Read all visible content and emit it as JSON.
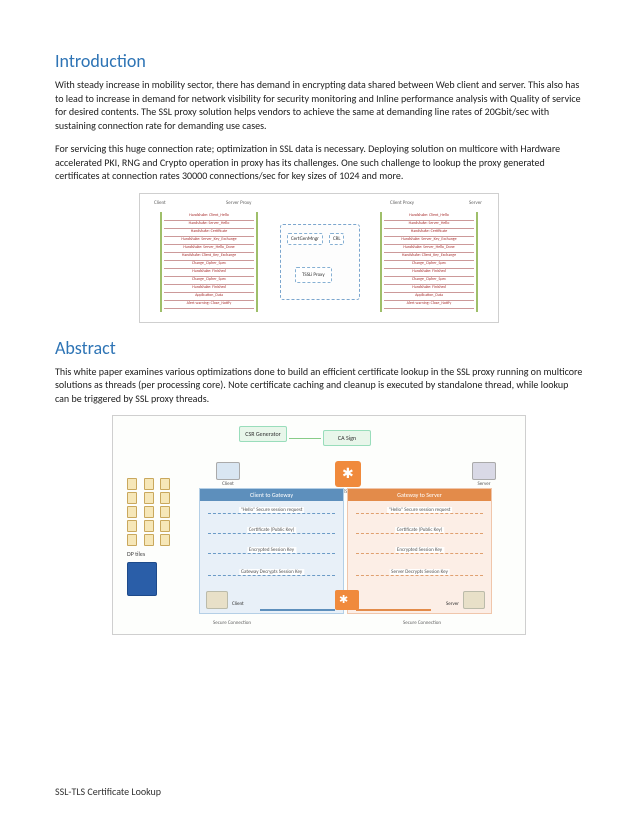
{
  "colors": {
    "heading": "#2E74B5",
    "body_text": "#222222",
    "diagram_border": "#cfcfcf",
    "rail_green": "#9fbf6a",
    "dash_blue": "#7ba6ce",
    "zone_blue_bg": "#e8f0f8",
    "zone_blue_border": "#b4cfe6",
    "zone_blue_header": "#5d8fbc",
    "zone_orange_bg": "#fceee6",
    "zone_orange_border": "#f0c6ab",
    "zone_orange_header": "#e38b4a",
    "tssli_orange": "#f08a3c",
    "top_box_bg": "#e8f6ea",
    "top_box_border": "#99ddbb",
    "dp_tile_bg": "#f6e7b8",
    "dp_tile_border": "#c9a85d",
    "dp_big_tile": "#2a5ea8"
  },
  "introduction": {
    "heading": "Introduction",
    "p1": "With steady increase in mobility sector, there has demand in encrypting data shared between Web client and server. This also has to lead to increase in demand for network visibility for security monitoring and Inline performance analysis with Quality of service for desired contents. The SSL proxy solution helps vendors to achieve the same at demanding line rates of 20Gbit/sec with sustaining connection rate for demanding use cases.",
    "p2": "For servicing this huge connection rate; optimization in SSL data is necessary. Deploying solution on multicore with Hardware accelerated PKI, RNG and Crypto operation in proxy has its challenges. One such challenge to lookup the proxy generated certificates at connection rates 30000 connections/sec for key sizes of 1024 and more."
  },
  "diagram1": {
    "labels": {
      "client": "Client",
      "server_proxy": "Server Proxy",
      "client_proxy": "Client Proxy",
      "server": "Server"
    },
    "center_boxes": {
      "certgen": "CertGenMngr",
      "crl": "CRL",
      "tssli": "TSSLi Proxy"
    },
    "ladder_steps": [
      "Handshake: Client_Hello",
      "Handshake: Server_Hello",
      "Handshake: Certificate",
      "Handshake: Server_Key_Exchange",
      "Handshake: Server_Hello_Done",
      "Handshake: Client_Key_Exchange",
      "Change_Cipher_Spec",
      "Handshake: Finished",
      "Change_Cipher_Spec",
      "Handshake: Finished",
      "Application_Data",
      "Alert warning: Close_Notify"
    ]
  },
  "abstract": {
    "heading": "Abstract",
    "p1": "This white paper examines various optimizations done to build an efficient certificate lookup in the SSL proxy running on multicore solutions as threads (per processing core). Note certificate caching and cleanup is executed by standalone thread, while lookup can be triggered by SSL proxy threads."
  },
  "diagram2": {
    "top_boxes": {
      "csr": "CSR\nGenerator",
      "ca": "CA Sign"
    },
    "nodes": {
      "client": "Client",
      "tssli": "TSSLi",
      "server": "Server"
    },
    "zones": {
      "left_title": "Client to Gateway",
      "right_title": "Gateway to Server"
    },
    "arrows": [
      "\"Hello\" Secure session request",
      "Certificate (Public Key)",
      "Encrypted Session Key",
      "Gateway Decrypts Session Key",
      "Server Decrypts Session Key",
      "Secure Connection"
    ],
    "dp_label": "DP tiles"
  },
  "footer": "SSL-TLS Certificate Lookup"
}
